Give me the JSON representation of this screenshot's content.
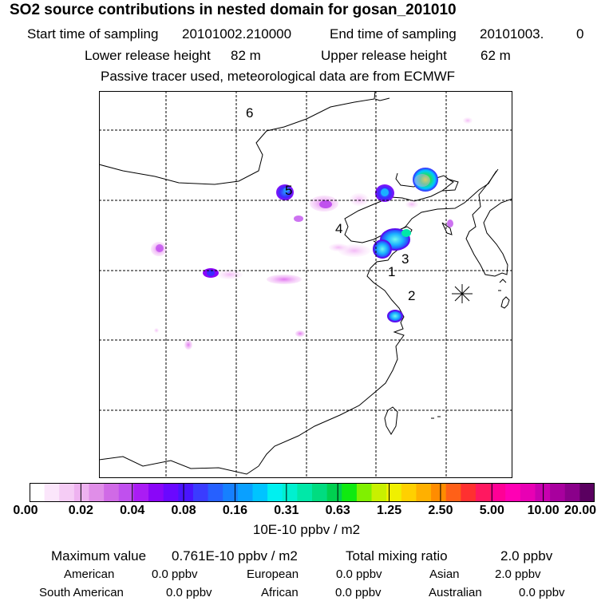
{
  "header": {
    "title": "SO2 source contributions in nested domain for gosan_201010",
    "start_label": "Start time of sampling",
    "start_value": "20101002.210000",
    "end_label": "End time of sampling",
    "end_value": "20101003.",
    "end_value2": "0",
    "lower_label": "Lower release height",
    "lower_value": "82 m",
    "upper_label": "Upper release height",
    "upper_value": "62 m",
    "note": "Passive tracer used, meteorological data are from ECMWF"
  },
  "map": {
    "region_labels": [
      "1",
      "2",
      "3",
      "4",
      "5",
      "6"
    ],
    "receptor_marker": "asterisk-icon"
  },
  "colorbar": {
    "colors": [
      "#ffffff",
      "#fbe6fb",
      "#f5ccf5",
      "#eeb2f0",
      "#e08ee8",
      "#d06ae6",
      "#c050ee",
      "#aa1cf4",
      "#8a06f8",
      "#6a08ff",
      "#4a14ff",
      "#3a3cff",
      "#2660ff",
      "#1680ff",
      "#0aa0ff",
      "#00c4ff",
      "#00f0f0",
      "#00f0d0",
      "#00e8a8",
      "#00dc80",
      "#00d050",
      "#10ea10",
      "#80f000",
      "#c8f000",
      "#f0f000",
      "#ffd000",
      "#ffb000",
      "#ff8c00",
      "#ff6018",
      "#ff3030",
      "#ff1860",
      "#ff0096",
      "#ff00b4",
      "#e800b4",
      "#c800b0",
      "#a8009e",
      "#8a008a",
      "#5a0060"
    ],
    "labels": [
      "0.00",
      "0.02",
      "0.04",
      "0.08",
      "0.16",
      "0.31",
      "0.63",
      "1.25",
      "2.50",
      "5.00",
      "10.00",
      "20.00"
    ],
    "units": "10E-10 ppbv / m2"
  },
  "stats": {
    "max_label": "Maximum value",
    "max_value": "0.761E-10 ppbv / m2",
    "total_label": "Total mixing ratio",
    "total_value": "2.0 ppbv",
    "sources": [
      {
        "name": "American",
        "value": "0.0 ppbv"
      },
      {
        "name": "European",
        "value": "0.0 ppbv"
      },
      {
        "name": "Asian",
        "value": "2.0 ppbv"
      },
      {
        "name": "South American",
        "value": "0.0 ppbv"
      },
      {
        "name": "African",
        "value": "0.0 ppbv"
      },
      {
        "name": "Australian",
        "value": "0.0 ppbv"
      }
    ]
  }
}
